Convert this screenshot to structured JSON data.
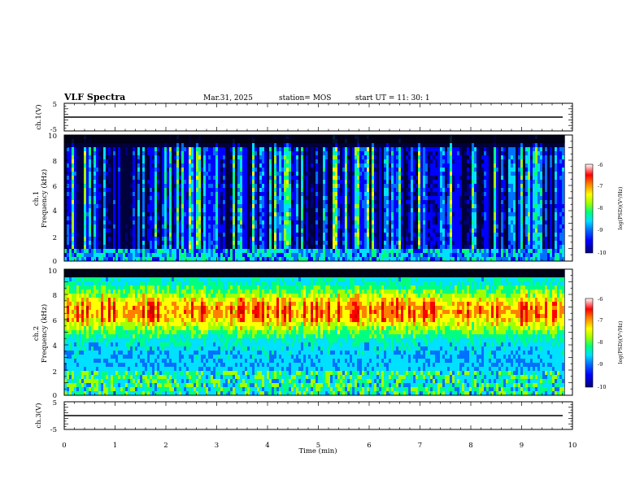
{
  "header": {
    "title": "VLF Spectra",
    "date": "Mar.31, 2025",
    "station": "station= MOS",
    "start_ut": "start  UT =   11: 30: 1"
  },
  "chart_data": {
    "type": "heatmap",
    "x_axis": {
      "label": "Time  (min)",
      "range": [
        0,
        10
      ],
      "tick_labels": [
        "0",
        "1",
        "2",
        "3",
        "4",
        "5",
        "6",
        "7",
        "8",
        "9",
        "10"
      ]
    },
    "panels": [
      {
        "name": "ch1_waveform",
        "ylabel": "ch.1(V)",
        "ylim": [
          -5,
          5
        ],
        "tick_labels": [
          "5",
          "-5"
        ],
        "trace_value": 0
      },
      {
        "name": "ch1_spectrogram",
        "ylabel_line1": "ch.1",
        "ylabel_line2": "Frequency  (kHz)",
        "ylim": [
          0,
          10
        ],
        "tick_labels": [
          "0",
          "2",
          "4",
          "6",
          "8",
          "10"
        ],
        "colorbar": {
          "label": "log(PSD)(V²/Hz)",
          "range": [
            -10,
            -6
          ],
          "tick_labels": [
            "-6",
            "-7",
            "-8",
            "-9",
            "-10"
          ]
        }
      },
      {
        "name": "ch2_spectrogram",
        "ylabel_line1": "ch.2",
        "ylabel_line2": "Frequency  (kHz)",
        "ylim": [
          0,
          10
        ],
        "tick_labels": [
          "0",
          "2",
          "4",
          "6",
          "8",
          "10"
        ],
        "colorbar": {
          "label": "log(PSD)(V²/Hz)",
          "range": [
            -10,
            -6
          ],
          "tick_labels": [
            "-6",
            "-7",
            "-8",
            "-9",
            "-10"
          ]
        }
      },
      {
        "name": "ch3_waveform",
        "ylabel": "ch.3(V)",
        "ylim": [
          -5,
          5
        ],
        "tick_labels": [
          "5",
          "-5"
        ],
        "trace_value": 0
      }
    ],
    "data_end_min": 9.85,
    "colormap": [
      "#00007a",
      "#0000ff",
      "#0070ff",
      "#00e0ff",
      "#00ff80",
      "#a0ff00",
      "#ffff00",
      "#ff8000",
      "#ff0000",
      "#d00000"
    ]
  }
}
